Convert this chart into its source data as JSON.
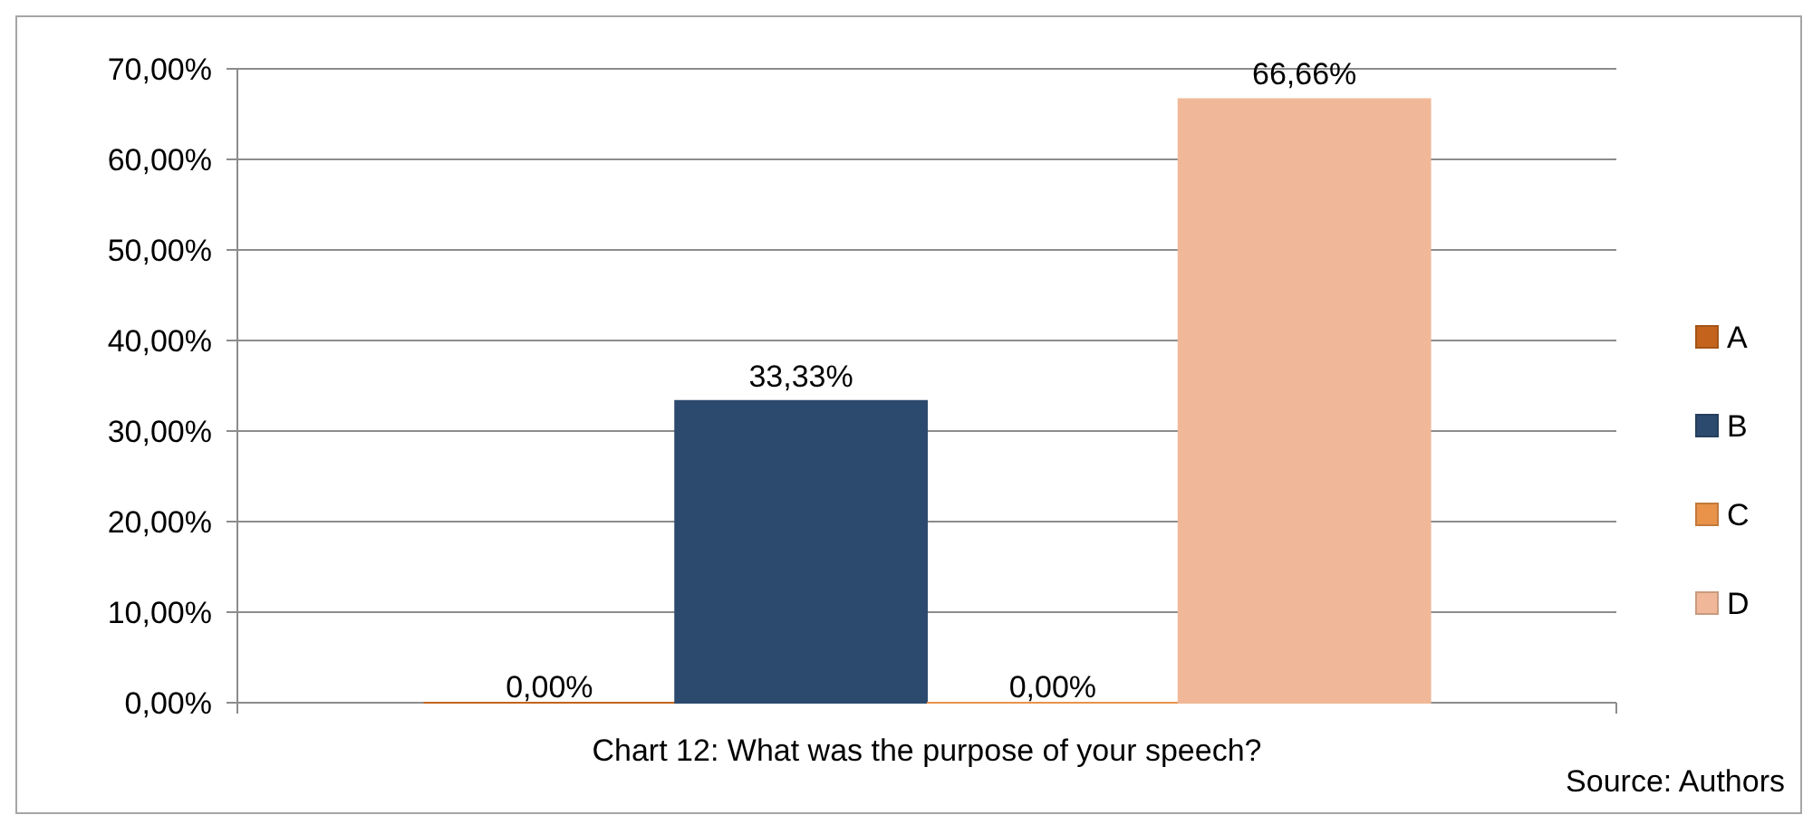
{
  "chart_data": {
    "type": "bar",
    "xlabel": "Chart 12: What was the purpose of your speech?",
    "annotations": [
      "Source: Authors"
    ],
    "categories": [
      null
    ],
    "series": [
      {
        "name": "A",
        "color": "#c4641c",
        "values": [
          0
        ],
        "value_labels": [
          "0,00%"
        ]
      },
      {
        "name": "B",
        "color": "#2c4a6e",
        "values": [
          33.33
        ],
        "value_labels": [
          "33,33%"
        ]
      },
      {
        "name": "C",
        "color": "#e8924a",
        "values": [
          0
        ],
        "value_labels": [
          "0,00%"
        ]
      },
      {
        "name": "D",
        "color": "#f0b898",
        "values": [
          66.66
        ],
        "value_labels": [
          "66,66%"
        ]
      }
    ],
    "ylim": [
      0,
      70
    ],
    "yticks": [
      {
        "value": 0,
        "label": "0,00%"
      },
      {
        "value": 10,
        "label": "10,00%"
      },
      {
        "value": 20,
        "label": "20,00%"
      },
      {
        "value": 30,
        "label": "30,00%"
      },
      {
        "value": 40,
        "label": "40,00%"
      },
      {
        "value": 50,
        "label": "50,00%"
      },
      {
        "value": 60,
        "label": "60,00%"
      },
      {
        "value": 70,
        "label": "70,00%"
      }
    ],
    "grid": "y",
    "legend": "right"
  }
}
